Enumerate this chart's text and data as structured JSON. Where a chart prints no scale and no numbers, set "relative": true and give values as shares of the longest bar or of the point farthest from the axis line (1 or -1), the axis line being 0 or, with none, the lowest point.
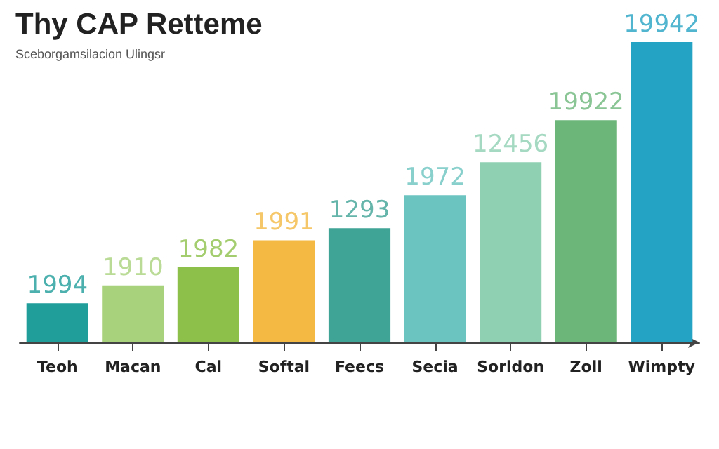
{
  "chart_data": {
    "type": "bar",
    "title": "Thy CAP Retteme",
    "subtitle": "Sceborgamsilacion Ulingsr",
    "relative": true,
    "categories": [
      "Teoh",
      "Macan",
      "Cal",
      "Softal",
      "Feecs",
      "Secia",
      "Sorldon",
      "Zoll",
      "Wimpty"
    ],
    "values": [
      0.13,
      0.19,
      0.25,
      0.34,
      0.38,
      0.49,
      0.6,
      0.74,
      1
    ],
    "colors": [
      "#1f9e9a",
      "#a9d27c",
      "#8cc04a",
      "#f4b942",
      "#3fa396",
      "#6cc4c0",
      "#8fd0b2",
      "#6db67a",
      "#25a3c4"
    ],
    "annotations": [
      {
        "text": "1994",
        "x": "Teoh",
        "y": 0.13
      },
      {
        "text": "1910",
        "x": "Macan",
        "y": 0.19
      },
      {
        "text": "1982",
        "x": "Cal",
        "y": 0.25
      },
      {
        "text": "1991",
        "x": "Softal",
        "y": 0.34
      },
      {
        "text": "1293",
        "x": "Feecs",
        "y": 0.38
      },
      {
        "text": "1972",
        "x": "Secia",
        "y": 0.49
      },
      {
        "text": "12456",
        "x": "Sorldon",
        "y": 0.6
      },
      {
        "text": "19922",
        "x": "Zoll",
        "y": 0.74
      },
      {
        "text": "19942",
        "x": "Wimpty",
        "y": 1
      }
    ]
  }
}
